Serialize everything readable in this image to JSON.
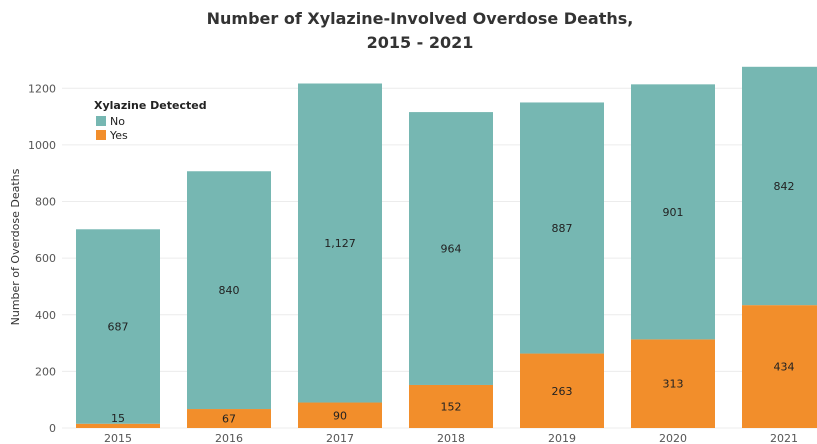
{
  "chart_data": {
    "type": "bar",
    "stacked": true,
    "title": [
      "Number of Xylazine-Involved Overdose Deaths,",
      "2015 - 2021"
    ],
    "xlabel": "",
    "ylabel": "Number of Overdose Deaths",
    "categories": [
      "2015",
      "2016",
      "2017",
      "2018",
      "2019",
      "2020",
      "2021"
    ],
    "ylim": [
      0,
      1300
    ],
    "yticks": [
      0,
      200,
      400,
      600,
      800,
      1000,
      1200
    ],
    "grid": true,
    "legend": {
      "title": "Xylazine Detected",
      "placement": "top-left"
    },
    "series": [
      {
        "name": "Yes",
        "color": "#F28E2B",
        "values": [
          15,
          67,
          90,
          152,
          263,
          313,
          434
        ]
      },
      {
        "name": "No",
        "color": "#76B7B2",
        "values": [
          687,
          840,
          1127,
          964,
          887,
          901,
          842
        ]
      }
    ]
  }
}
